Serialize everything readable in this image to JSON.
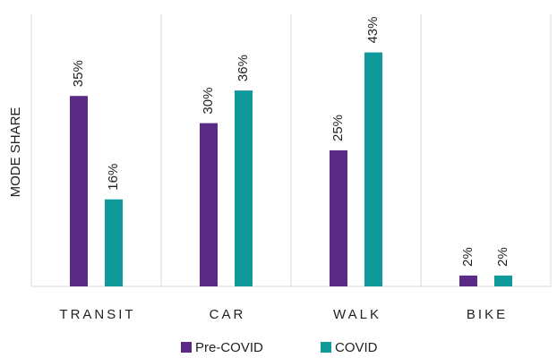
{
  "chart_data": {
    "type": "bar",
    "y_label": "MODE SHARE",
    "categories": [
      "TRANSIT",
      "CAR",
      "WALK",
      "BIKE"
    ],
    "series": [
      {
        "name": "Pre-COVID",
        "color": "#5b2a86",
        "values": [
          35,
          30,
          25,
          2
        ],
        "value_labels": [
          "35%",
          "30%",
          "25%",
          "2%"
        ]
      },
      {
        "name": "COVID",
        "color": "#10999a",
        "values": [
          16,
          36,
          43,
          2
        ],
        "value_labels": [
          "16%",
          "36%",
          "43%",
          "2%"
        ]
      }
    ],
    "ylim": [
      0,
      50
    ],
    "legend": "bottom"
  }
}
